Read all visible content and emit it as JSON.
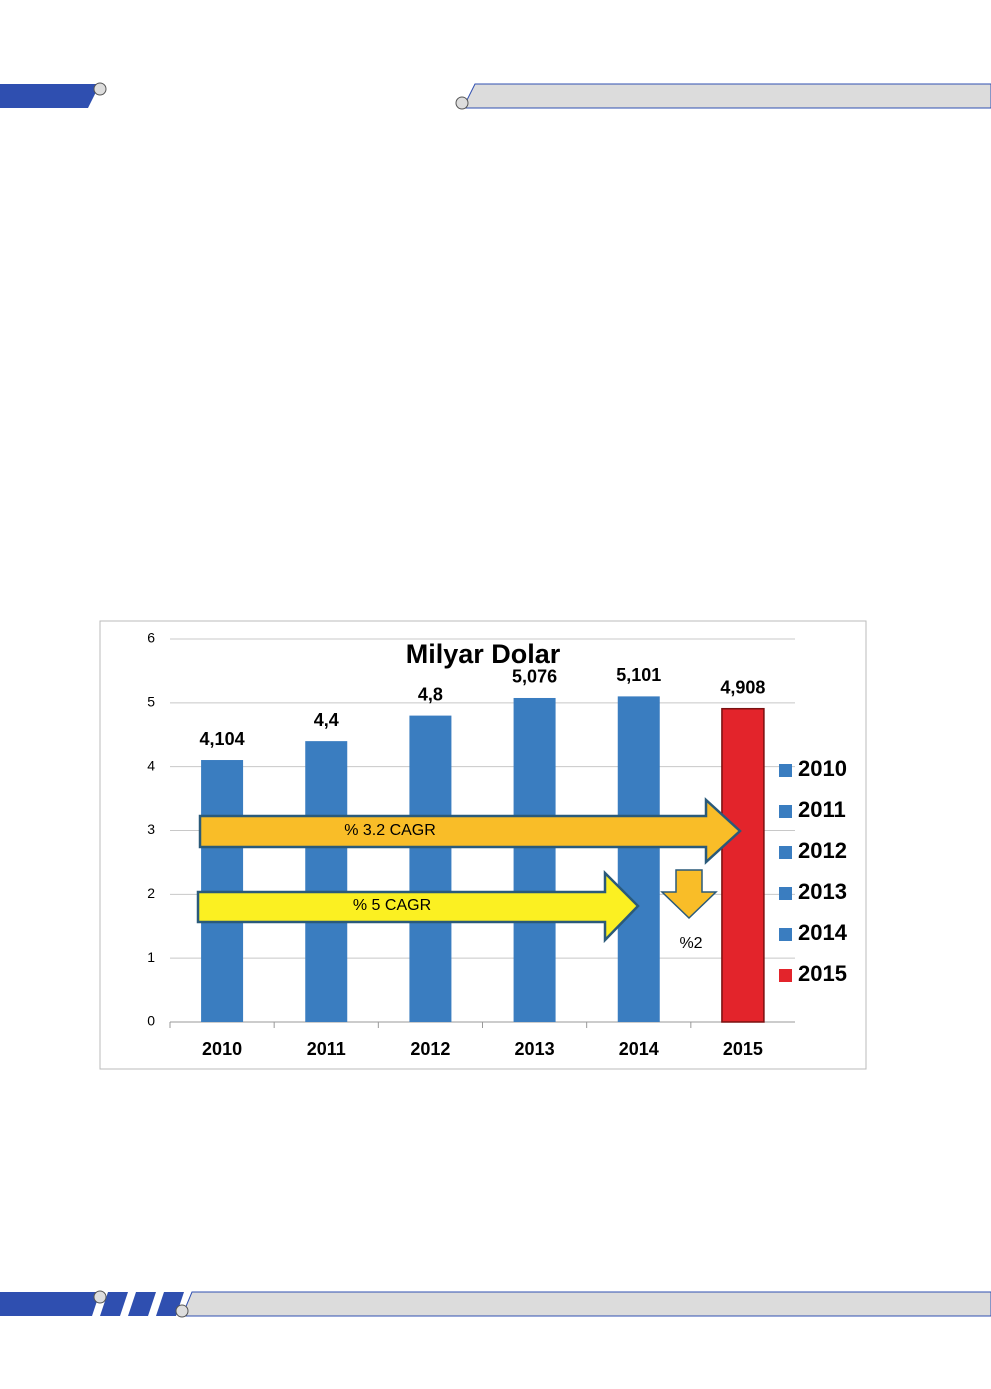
{
  "chart_data": {
    "type": "bar",
    "title": "Milyar Dolar",
    "categories": [
      "2010",
      "2011",
      "2012",
      "2013",
      "2014",
      "2015"
    ],
    "values": [
      4.104,
      4.4,
      4.8,
      5.076,
      5.101,
      4.908
    ],
    "value_labels": [
      "4,104",
      "4,4",
      "4,8",
      "5,076",
      "5,101",
      "4,908"
    ],
    "colors": [
      "#3a7dc0",
      "#3a7dc0",
      "#3a7dc0",
      "#3a7dc0",
      "#3a7dc0",
      "#e3242b"
    ],
    "ylim": [
      0,
      6
    ],
    "yticks": [
      0,
      1,
      2,
      3,
      4,
      5,
      6
    ],
    "grid": true,
    "legend": "right",
    "annotations": [
      "% 3.2 CAGR",
      "% 5 CAGR",
      "%2"
    ]
  }
}
